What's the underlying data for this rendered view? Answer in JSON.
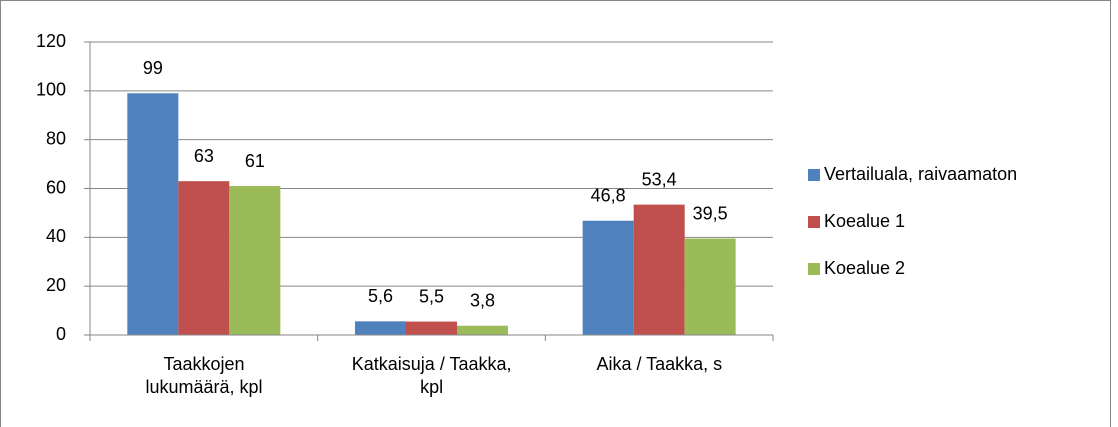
{
  "chart_data": {
    "type": "bar",
    "categories": [
      "Taakkojen\nlukumäärä, kpl",
      "Katkaisuja / Taakka,\nkpl",
      "Aika / Taakka, s"
    ],
    "series": [
      {
        "name": "Vertailuala, raivaamaton",
        "color": "#4f81bd",
        "values": [
          99,
          5.6,
          46.8
        ],
        "value_labels": [
          "99",
          "5,6",
          "46,8"
        ]
      },
      {
        "name": "Koealue 1",
        "color": "#c0504d",
        "values": [
          63,
          5.5,
          53.4
        ],
        "value_labels": [
          "63",
          "5,5",
          "53,4"
        ]
      },
      {
        "name": "Koealue 2",
        "color": "#9bbb59",
        "values": [
          61,
          3.8,
          39.5
        ],
        "value_labels": [
          "61",
          "3,8",
          "39,5"
        ]
      }
    ],
    "ylim": [
      0,
      120
    ],
    "yticks": [
      0,
      20,
      40,
      60,
      80,
      100,
      120
    ],
    "grid": true,
    "legend": "right"
  }
}
